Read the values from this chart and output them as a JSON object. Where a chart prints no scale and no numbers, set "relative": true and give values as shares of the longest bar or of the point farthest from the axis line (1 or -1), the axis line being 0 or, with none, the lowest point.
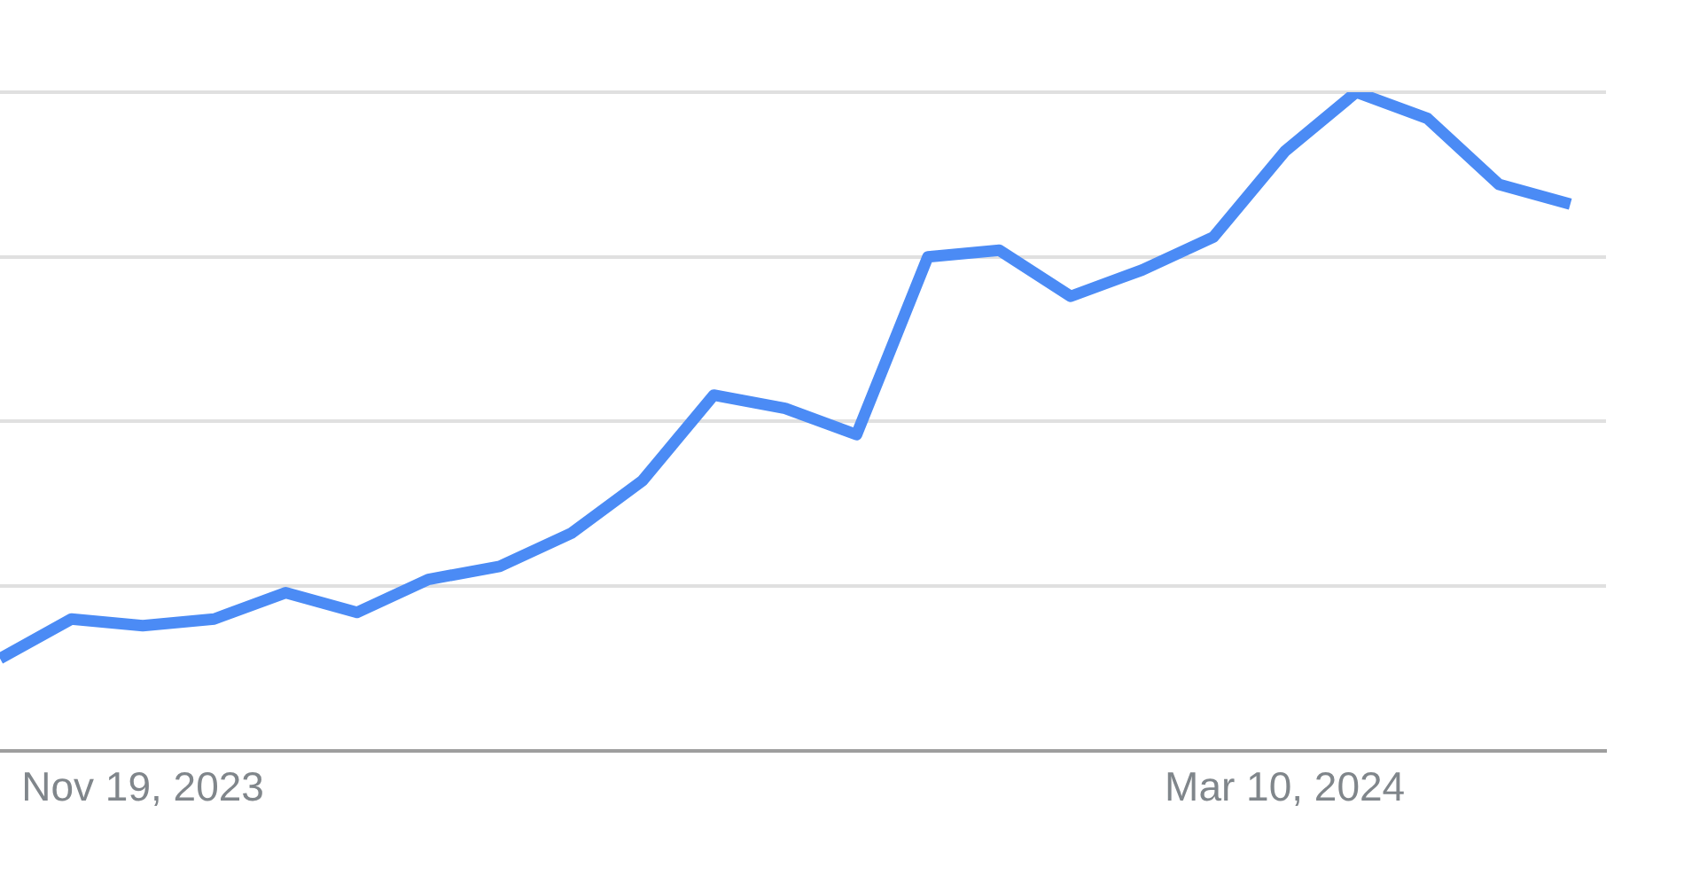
{
  "chart_data": {
    "type": "line",
    "relative": true,
    "grid": "y",
    "marker": "none",
    "categories": [
      null,
      null,
      "Nov 19, 2023",
      null,
      null,
      null,
      null,
      null,
      null,
      null,
      null,
      null,
      null,
      null,
      null,
      null,
      null,
      null,
      "Mar 10, 2024",
      null,
      null,
      null,
      null
    ],
    "series": [
      {
        "color": "#4b8bf5",
        "values": [
          0.14,
          0.2,
          0.19,
          0.2,
          0.24,
          0.21,
          0.26,
          0.28,
          0.33,
          0.41,
          0.54,
          0.52,
          0.48,
          0.75,
          0.76,
          0.69,
          0.73,
          0.78,
          0.91,
          1,
          0.96,
          0.86,
          0.83
        ]
      }
    ]
  }
}
